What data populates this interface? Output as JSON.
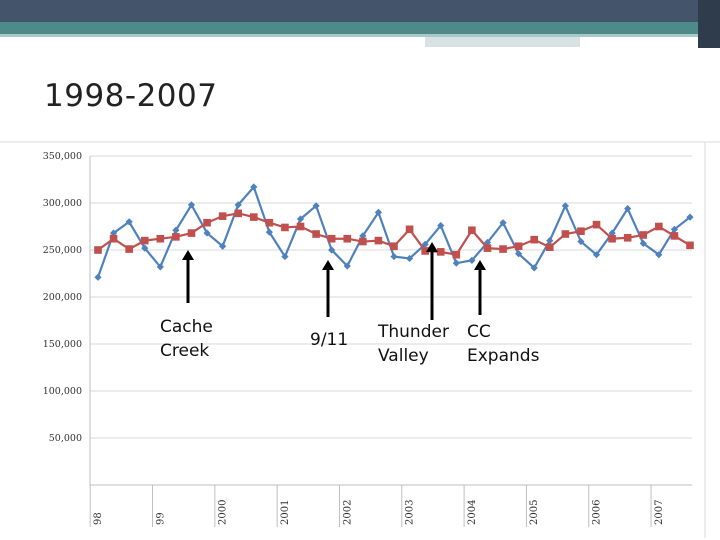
{
  "slide": {
    "title": "1998-2007"
  },
  "chart_data": {
    "type": "line",
    "title": "",
    "xlabel": "",
    "ylabel": "",
    "ylim": [
      0,
      350000
    ],
    "yticks": [
      0,
      50000,
      100000,
      150000,
      200000,
      250000,
      300000,
      350000
    ],
    "ytick_labels": [
      "",
      "50,000",
      "100,000",
      "150,000",
      "200,000",
      "250,000",
      "300,000",
      "350,000"
    ],
    "grid": true,
    "legend": "none",
    "x_tick_labels": [
      {
        "label": "98",
        "index": 0.5
      },
      {
        "label": "99",
        "index": 4.5
      },
      {
        "label": "2000",
        "index": 8.5
      },
      {
        "label": "2001",
        "index": 12.5
      },
      {
        "label": "2002",
        "index": 16.5
      },
      {
        "label": "2003",
        "index": 20.5
      },
      {
        "label": "2004",
        "index": 24.5
      },
      {
        "label": "2005",
        "index": 28.5
      },
      {
        "label": "2006",
        "index": 32.5
      },
      {
        "label": "2007",
        "index": 36.5
      }
    ],
    "series": [
      {
        "color": "#4f81bd",
        "marker": "diamond",
        "values": [
          221000,
          268000,
          280000,
          252000,
          232000,
          271000,
          298000,
          268000,
          254000,
          298000,
          317000,
          269000,
          243000,
          283000,
          297000,
          250000,
          233000,
          265000,
          290000,
          243000,
          241000,
          256000,
          276000,
          236000,
          239000,
          258000,
          279000,
          246000,
          231000,
          260000,
          297000,
          259000,
          245000,
          268000,
          294000,
          257000,
          245000,
          272000,
          285000
        ]
      },
      {
        "color": "#c0504d",
        "marker": "square",
        "values": [
          250000,
          262000,
          251000,
          260000,
          262000,
          264000,
          268000,
          279000,
          286000,
          289000,
          285000,
          279000,
          274000,
          275000,
          267000,
          262000,
          262000,
          259000,
          260000,
          254000,
          272000,
          249000,
          248000,
          245000,
          271000,
          252000,
          251000,
          254000,
          261000,
          253000,
          267000,
          270000,
          277000,
          262000,
          263000,
          266000,
          275000,
          265000,
          255000
        ]
      }
    ]
  },
  "annotations": [
    {
      "lines": [
        "Cache",
        "Creek"
      ],
      "index": 6
    },
    {
      "lines": [
        "9/11"
      ],
      "index": 15
    },
    {
      "lines": [
        "Thunder",
        "Valley"
      ],
      "index": 22
    },
    {
      "lines": [
        "CC",
        "Expands"
      ],
      "index": 25
    }
  ]
}
